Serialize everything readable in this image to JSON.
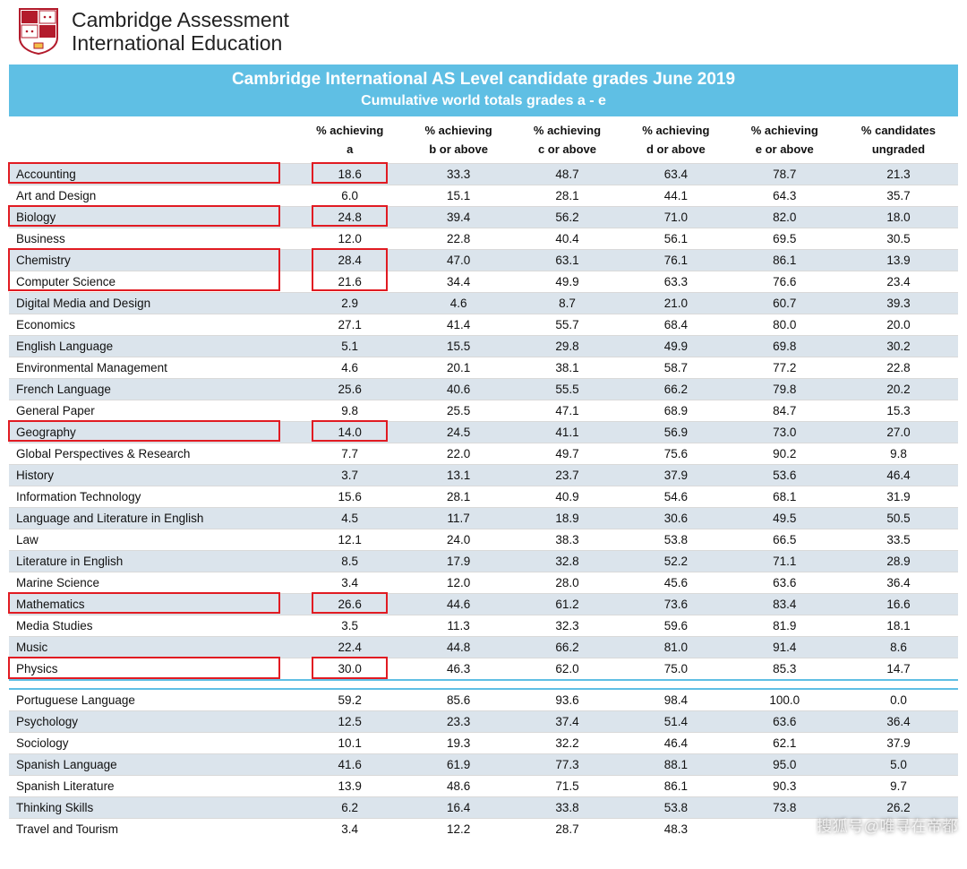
{
  "brand": {
    "line1": "Cambridge Assessment",
    "line2": "International Education"
  },
  "title": {
    "main": "Cambridge International AS Level candidate grades June 2019",
    "sub": "Cumulative world totals grades a - e"
  },
  "columns": [
    "% achieving\na",
    "% achieving\nb or above",
    "% achieving\nc or above",
    "% achieving\nd or above",
    "% achieving\ne or above",
    "% candidates\nungraded"
  ],
  "highlight_color": "#e11b22",
  "row_shaded_bg": "#dbe4ec",
  "row_plain_bg": "#ffffff",
  "band_bg": "#5fbfe4",
  "rows": [
    {
      "subject": "Accounting",
      "vals": [
        "18.6",
        "33.3",
        "48.7",
        "63.4",
        "78.7",
        "21.3"
      ],
      "shaded": true,
      "hl": "both"
    },
    {
      "subject": "Art and Design",
      "vals": [
        "6.0",
        "15.1",
        "28.1",
        "44.1",
        "64.3",
        "35.7"
      ],
      "shaded": false
    },
    {
      "subject": "Biology",
      "vals": [
        "24.8",
        "39.4",
        "56.2",
        "71.0",
        "82.0",
        "18.0"
      ],
      "shaded": true,
      "hl": "both"
    },
    {
      "subject": "Business",
      "vals": [
        "12.0",
        "22.8",
        "40.4",
        "56.1",
        "69.5",
        "30.5"
      ],
      "shaded": false
    },
    {
      "subject": "Chemistry",
      "vals": [
        "28.4",
        "47.0",
        "63.1",
        "76.1",
        "86.1",
        "13.9"
      ],
      "shaded": true,
      "hl": "both_top"
    },
    {
      "subject": "Computer Science",
      "vals": [
        "21.6",
        "34.4",
        "49.9",
        "63.3",
        "76.6",
        "23.4"
      ],
      "shaded": false,
      "hl": "both_bottom"
    },
    {
      "subject": "Digital Media and Design",
      "vals": [
        "2.9",
        "4.6",
        "8.7",
        "21.0",
        "60.7",
        "39.3"
      ],
      "shaded": true
    },
    {
      "subject": "Economics",
      "vals": [
        "27.1",
        "41.4",
        "55.7",
        "68.4",
        "80.0",
        "20.0"
      ],
      "shaded": false
    },
    {
      "subject": "English Language",
      "vals": [
        "5.1",
        "15.5",
        "29.8",
        "49.9",
        "69.8",
        "30.2"
      ],
      "shaded": true
    },
    {
      "subject": "Environmental Management",
      "vals": [
        "4.6",
        "20.1",
        "38.1",
        "58.7",
        "77.2",
        "22.8"
      ],
      "shaded": false
    },
    {
      "subject": "French Language",
      "vals": [
        "25.6",
        "40.6",
        "55.5",
        "66.2",
        "79.8",
        "20.2"
      ],
      "shaded": true
    },
    {
      "subject": "General Paper",
      "vals": [
        "9.8",
        "25.5",
        "47.1",
        "68.9",
        "84.7",
        "15.3"
      ],
      "shaded": false
    },
    {
      "subject": "Geography",
      "vals": [
        "14.0",
        "24.5",
        "41.1",
        "56.9",
        "73.0",
        "27.0"
      ],
      "shaded": true,
      "hl": "both"
    },
    {
      "subject": "Global Perspectives & Research",
      "vals": [
        "7.7",
        "22.0",
        "49.7",
        "75.6",
        "90.2",
        "9.8"
      ],
      "shaded": false
    },
    {
      "subject": "History",
      "vals": [
        "3.7",
        "13.1",
        "23.7",
        "37.9",
        "53.6",
        "46.4"
      ],
      "shaded": true
    },
    {
      "subject": "Information Technology",
      "vals": [
        "15.6",
        "28.1",
        "40.9",
        "54.6",
        "68.1",
        "31.9"
      ],
      "shaded": false
    },
    {
      "subject": "Language and Literature in English",
      "vals": [
        "4.5",
        "11.7",
        "18.9",
        "30.6",
        "49.5",
        "50.5"
      ],
      "shaded": true
    },
    {
      "subject": "Law",
      "vals": [
        "12.1",
        "24.0",
        "38.3",
        "53.8",
        "66.5",
        "33.5"
      ],
      "shaded": false
    },
    {
      "subject": "Literature in English",
      "vals": [
        "8.5",
        "17.9",
        "32.8",
        "52.2",
        "71.1",
        "28.9"
      ],
      "shaded": true
    },
    {
      "subject": "Marine Science",
      "vals": [
        "3.4",
        "12.0",
        "28.0",
        "45.6",
        "63.6",
        "36.4"
      ],
      "shaded": false
    },
    {
      "subject": "Mathematics",
      "vals": [
        "26.6",
        "44.6",
        "61.2",
        "73.6",
        "83.4",
        "16.6"
      ],
      "shaded": true,
      "hl": "both"
    },
    {
      "subject": "Media Studies",
      "vals": [
        "3.5",
        "11.3",
        "32.3",
        "59.6",
        "81.9",
        "18.1"
      ],
      "shaded": false
    },
    {
      "subject": "Music",
      "vals": [
        "22.4",
        "44.8",
        "66.2",
        "81.0",
        "91.4",
        "8.6"
      ],
      "shaded": true
    },
    {
      "subject": "Physics",
      "vals": [
        "30.0",
        "46.3",
        "62.0",
        "75.0",
        "85.3",
        "14.7"
      ],
      "shaded": false,
      "hl": "both"
    }
  ],
  "rows2": [
    {
      "subject": "Portuguese Language",
      "vals": [
        "59.2",
        "85.6",
        "93.6",
        "98.4",
        "100.0",
        "0.0"
      ],
      "shaded": false
    },
    {
      "subject": "Psychology",
      "vals": [
        "12.5",
        "23.3",
        "37.4",
        "51.4",
        "63.6",
        "36.4"
      ],
      "shaded": true
    },
    {
      "subject": "Sociology",
      "vals": [
        "10.1",
        "19.3",
        "32.2",
        "46.4",
        "62.1",
        "37.9"
      ],
      "shaded": false
    },
    {
      "subject": "Spanish Language",
      "vals": [
        "41.6",
        "61.9",
        "77.3",
        "88.1",
        "95.0",
        "5.0"
      ],
      "shaded": true
    },
    {
      "subject": "Spanish Literature",
      "vals": [
        "13.9",
        "48.6",
        "71.5",
        "86.1",
        "90.3",
        "9.7"
      ],
      "shaded": false
    },
    {
      "subject": "Thinking Skills",
      "vals": [
        "6.2",
        "16.4",
        "33.8",
        "53.8",
        "73.8",
        "26.2"
      ],
      "shaded": true
    },
    {
      "subject": "Travel and Tourism",
      "vals": [
        "3.4",
        "12.2",
        "28.7",
        "48.3",
        "",
        ""
      ],
      "shaded": false
    }
  ],
  "watermark": "搜狐号@唯寻在帝都"
}
